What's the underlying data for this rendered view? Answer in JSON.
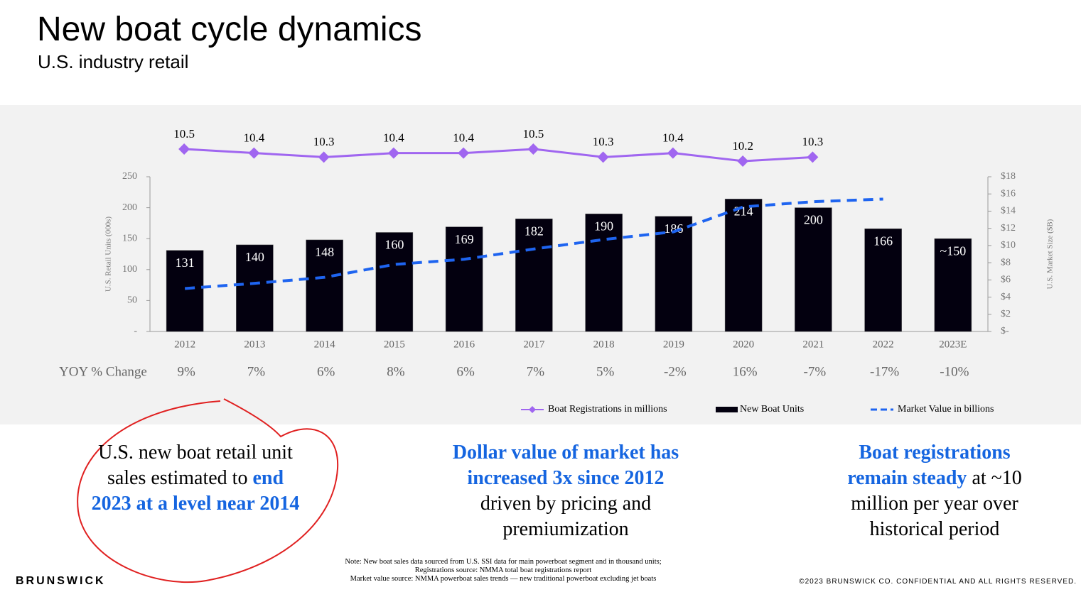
{
  "title": "New boat cycle dynamics",
  "subtitle": "U.S. industry retail",
  "chart_data": {
    "type": "bar",
    "categories": [
      "2012",
      "2013",
      "2014",
      "2015",
      "2016",
      "2017",
      "2018",
      "2019",
      "2020",
      "2021",
      "2022",
      "2023E"
    ],
    "series": [
      {
        "name": "New Boat Units",
        "type": "bar",
        "color": "#03000f",
        "values": [
          131,
          140,
          148,
          160,
          169,
          182,
          190,
          186,
          214,
          200,
          166,
          150
        ],
        "value_labels": [
          "131",
          "140",
          "148",
          "160",
          "169",
          "182",
          "190",
          "186",
          "214",
          "200",
          "166",
          "~150"
        ]
      },
      {
        "name": "Market Value in billions",
        "type": "line",
        "axis": "y2",
        "color": "#1e64f0",
        "dashed": true,
        "values": [
          5.0,
          5.6,
          6.3,
          7.8,
          8.4,
          9.6,
          10.7,
          11.6,
          14.5,
          15.1,
          15.4,
          null
        ]
      },
      {
        "name": "Boat Registrations in millions",
        "type": "line",
        "axis": "y3",
        "color": "#a066f0",
        "marker": "diamond",
        "values": [
          10.5,
          10.4,
          10.3,
          10.4,
          10.4,
          10.5,
          10.3,
          10.4,
          10.2,
          10.3,
          null,
          null
        ]
      }
    ],
    "ylabel": "U.S. Retail Units (000s)",
    "y2label": "U.S. Market Size ($B)",
    "ylim": [
      0,
      250
    ],
    "yticks": [
      {
        "value": 0,
        "label": "-"
      },
      50,
      100,
      150,
      200,
      250
    ],
    "y2lim": [
      0,
      18
    ],
    "y2ticks": [
      {
        "value": 0,
        "label": "$-"
      },
      {
        "value": 2,
        "label": "$2"
      },
      {
        "value": 4,
        "label": "$4"
      },
      {
        "value": 6,
        "label": "$6"
      },
      {
        "value": 8,
        "label": "$8"
      },
      {
        "value": 10,
        "label": "$10"
      },
      {
        "value": 12,
        "label": "$12"
      },
      {
        "value": 14,
        "label": "$14"
      },
      {
        "value": 16,
        "label": "$16"
      },
      {
        "value": 18,
        "label": "$18"
      }
    ],
    "yoy_label": "YOY % Change",
    "yoy": [
      "9%",
      "7%",
      "6%",
      "8%",
      "6%",
      "7%",
      "5%",
      "-2%",
      "16%",
      "-7%",
      "-17%",
      "-10%"
    ],
    "legend": "bottom-right"
  },
  "callouts": [
    {
      "plain": "U.S. new boat retail unit sales estimated to ",
      "emphasis": "end 2023 at a level near 2014"
    },
    {
      "emphasis": "Dollar value of market has increased 3x since 2012",
      "plain": " driven by pricing and premiumization"
    },
    {
      "emphasis": "Boat registrations remain steady",
      "plain": " at ~10 million per year over historical period"
    }
  ],
  "notes": [
    "Note: New boat sales data sourced from U.S. SSI data for main powerboat segment and in thousand units;",
    "Registrations source: NMMA total boat registrations report",
    "Market value source: NMMA powerboat sales trends — new traditional powerboat excluding jet boats"
  ],
  "brand": "BRUNSWICK",
  "copyright": "©2023 BRUNSWICK CO. CONFIDENTIAL AND ALL RIGHTS RESERVED."
}
